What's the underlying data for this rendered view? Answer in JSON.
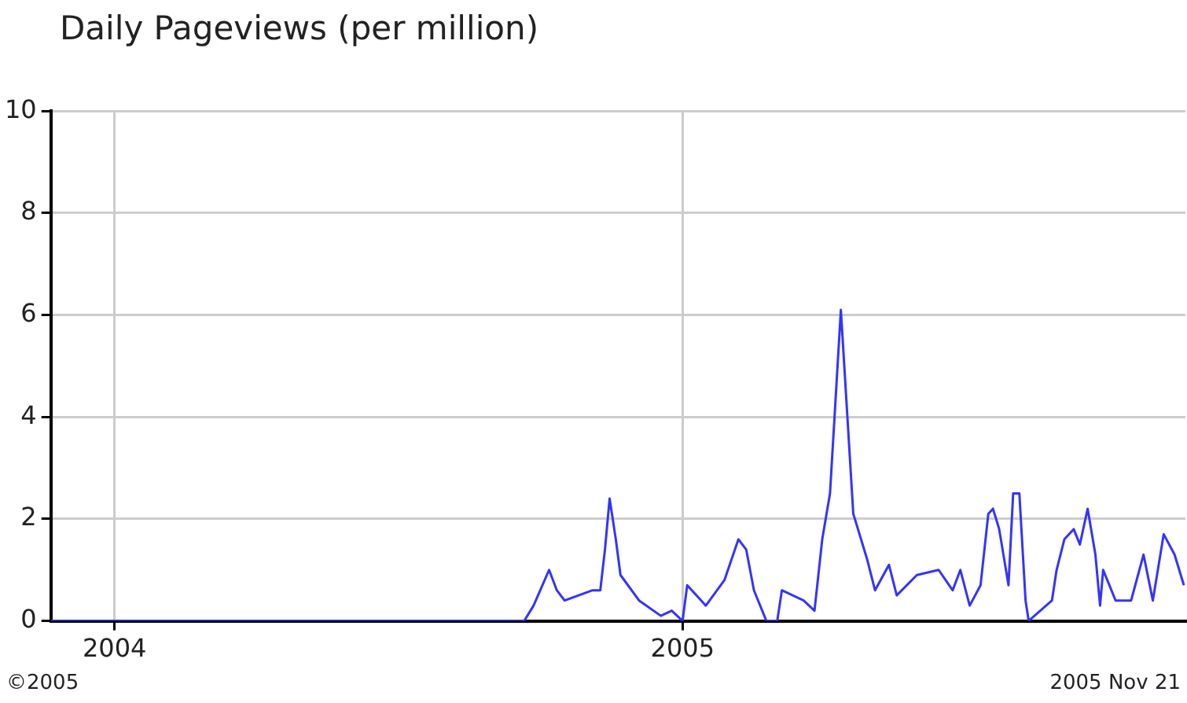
{
  "chart_data": {
    "type": "line",
    "title": "Daily Pageviews (per million)",
    "annotations": [
      "©2005",
      "2005 Nov 21"
    ],
    "xlim": [
      "2003-11-21",
      "2005-11-21"
    ],
    "xticks": [
      "2004",
      "2005"
    ],
    "ylim": [
      0,
      10
    ],
    "yticks": [
      0,
      2,
      4,
      6,
      8,
      10
    ],
    "grid": true,
    "legend": false,
    "marker": "none",
    "x": [
      "2003-11-21",
      "2004-09-21",
      "2004-09-27",
      "2004-10-07",
      "2004-10-12",
      "2004-10-17",
      "2004-11-04",
      "2004-11-09",
      "2004-11-12",
      "2004-11-15",
      "2004-11-19",
      "2004-11-22",
      "2004-12-04",
      "2004-12-18",
      "2004-12-25",
      "2005-01-01",
      "2005-01-04",
      "2005-01-16",
      "2005-01-28",
      "2005-02-06",
      "2005-02-11",
      "2005-02-16",
      "2005-02-24",
      "2005-03-03",
      "2005-03-06",
      "2005-03-20",
      "2005-03-27",
      "2005-04-01",
      "2005-04-06",
      "2005-04-13",
      "2005-04-21",
      "2005-04-30",
      "2005-05-05",
      "2005-05-14",
      "2005-05-19",
      "2005-06-01",
      "2005-06-15",
      "2005-06-24",
      "2005-06-29",
      "2005-07-05",
      "2005-07-12",
      "2005-07-17",
      "2005-07-20",
      "2005-07-24",
      "2005-07-30",
      "2005-08-02",
      "2005-08-06",
      "2005-08-10",
      "2005-08-12",
      "2005-08-27",
      "2005-08-30",
      "2005-09-04",
      "2005-09-10",
      "2005-09-14",
      "2005-09-19",
      "2005-09-24",
      "2005-09-27",
      "2005-09-29",
      "2005-10-07",
      "2005-10-17",
      "2005-10-25",
      "2005-10-31",
      "2005-11-07",
      "2005-11-14",
      "2005-11-20"
    ],
    "series": [
      {
        "color": "#3333ff",
        "values": [
          0,
          0,
          0.3,
          1.0,
          0.6,
          0.4,
          0.6,
          0.6,
          1.4,
          2.4,
          1.6,
          0.9,
          0.4,
          0.1,
          0.2,
          0,
          0.7,
          0.3,
          0.8,
          1.6,
          1.4,
          0.6,
          0,
          0,
          0.6,
          0.4,
          0.2,
          1.6,
          2.5,
          6.1,
          2.1,
          1.2,
          0.6,
          1.1,
          0.5,
          0.9,
          1.0,
          0.6,
          1.0,
          0.3,
          0.7,
          2.1,
          2.2,
          1.8,
          0.7,
          2.5,
          2.5,
          0.4,
          0,
          0.4,
          1.0,
          1.6,
          1.8,
          1.5,
          2.2,
          1.3,
          0.3,
          1.0,
          0.4,
          0.4,
          1.3,
          0.4,
          1.7,
          1.3,
          0.7
        ]
      }
    ]
  }
}
